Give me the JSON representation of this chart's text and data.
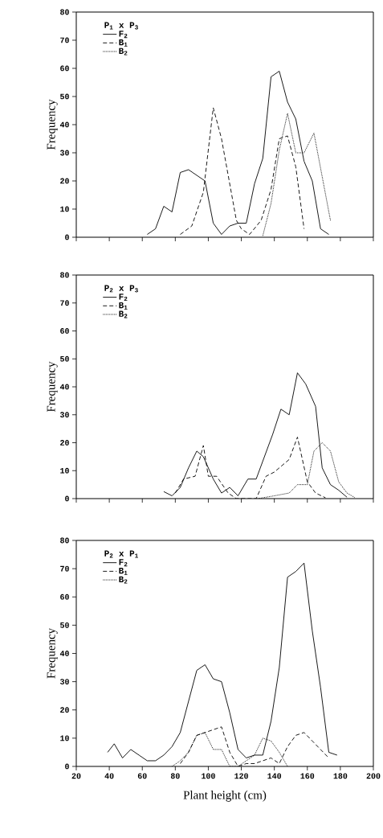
{
  "chart_data": [
    {
      "type": "line",
      "legend_title": "P$_{1}$ x P$_{3}$",
      "ylabel": "Frequency",
      "xlim": [
        20,
        200
      ],
      "xticks": [
        20,
        40,
        60,
        80,
        100,
        120,
        140,
        160,
        180,
        200
      ],
      "ylim": [
        0,
        80
      ],
      "yticks": [
        0,
        10,
        20,
        30,
        40,
        50,
        60,
        70,
        80
      ],
      "tick_labels": "y",
      "legend": "top left",
      "grid": false,
      "marker": "none",
      "series": [
        {
          "name": "F$_{2}$",
          "color": "#000000",
          "line_style": "solid",
          "x": [
            63,
            68,
            73,
            78,
            83,
            88,
            98,
            103,
            108,
            113,
            118,
            123,
            128,
            133,
            138,
            143,
            148,
            153,
            158,
            163,
            168,
            173
          ],
          "values": [
            1,
            3,
            11,
            9,
            23,
            24,
            20,
            5,
            1,
            4,
            5,
            5,
            19,
            28,
            57,
            59,
            48,
            42,
            27,
            20,
            3,
            1
          ]
        },
        {
          "name": "B$_{1}$",
          "color": "#000000",
          "line_style": "dashed",
          "x": [
            83,
            90,
            97,
            103,
            108,
            117,
            120,
            125,
            132,
            138,
            143,
            148,
            153,
            158
          ],
          "values": [
            1,
            4,
            16,
            46,
            35,
            6,
            3,
            1,
            6,
            17,
            35,
            36,
            25,
            3
          ]
        },
        {
          "name": "B$_{2}$",
          "color": "#000000",
          "line_style": "dotted",
          "x": [
            133,
            138,
            143,
            148,
            153,
            158,
            164,
            174
          ],
          "values": [
            0.5,
            12,
            31,
            44,
            30,
            30,
            37,
            6
          ]
        }
      ]
    },
    {
      "type": "line",
      "legend_title": "P$_{2}$ x P$_{3}$",
      "ylabel": "Frequency",
      "xlim": [
        20,
        200
      ],
      "xticks": [
        20,
        40,
        60,
        80,
        100,
        120,
        140,
        160,
        180,
        200
      ],
      "ylim": [
        0,
        80
      ],
      "yticks": [
        0,
        10,
        20,
        30,
        40,
        50,
        60,
        70,
        80
      ],
      "tick_labels": "y",
      "legend": "top left",
      "grid": false,
      "marker": "none",
      "series": [
        {
          "name": "F$_{2}$",
          "color": "#000000",
          "line_style": "solid",
          "x": [
            73,
            78,
            83,
            88,
            93,
            97,
            103,
            108,
            113,
            118,
            124,
            129,
            134,
            139,
            144,
            149,
            154,
            159,
            165,
            169,
            174,
            179,
            184
          ],
          "values": [
            2.5,
            1,
            4,
            11,
            17,
            15,
            7,
            2,
            4,
            1,
            7,
            7,
            15,
            23,
            32,
            30,
            45,
            41,
            33,
            11,
            5,
            3,
            0.5
          ]
        },
        {
          "name": "B$_{1}$",
          "color": "#000000",
          "line_style": "dashed",
          "x": [
            80,
            85,
            92,
            97,
            100,
            105,
            112,
            117,
            129,
            135,
            140,
            149,
            154,
            160,
            165,
            171
          ],
          "values": [
            2,
            7,
            8,
            19,
            8,
            8,
            2,
            0,
            0,
            8,
            9.5,
            14,
            22,
            6,
            2,
            0.3
          ]
        },
        {
          "name": "B$_{2}$",
          "color": "#000000",
          "line_style": "dotted",
          "x": [
            130,
            140,
            149,
            154,
            160,
            164,
            169,
            174,
            179,
            184,
            189
          ],
          "values": [
            0,
            1,
            2,
            5,
            5,
            17,
            20,
            17,
            6,
            2,
            0.3
          ]
        }
      ]
    },
    {
      "type": "line",
      "legend_title": "P$_{2}$ x P$_{1}$",
      "ylabel": "Frequency",
      "xlabel": "Plant height (cm)",
      "xlim": [
        20,
        200
      ],
      "xticks": [
        20,
        40,
        60,
        80,
        100,
        120,
        140,
        160,
        180,
        200
      ],
      "ylim": [
        0,
        80
      ],
      "yticks": [
        0,
        10,
        20,
        30,
        40,
        50,
        60,
        70,
        80
      ],
      "legend": "top left",
      "grid": false,
      "marker": "none",
      "series": [
        {
          "name": "F$_{2}$",
          "color": "#000000",
          "line_style": "solid",
          "x": [
            39,
            43,
            48,
            53,
            58,
            63,
            68,
            73,
            78,
            83,
            88,
            93,
            98,
            103,
            108,
            113,
            118,
            123,
            128,
            133,
            138,
            143,
            148,
            153,
            158,
            163,
            168,
            173,
            178
          ],
          "values": [
            5,
            8,
            3,
            6,
            4,
            2,
            2,
            4,
            7,
            12,
            23,
            34,
            36,
            31,
            30,
            19,
            6,
            3,
            4,
            4,
            16,
            35,
            67,
            69,
            72,
            48,
            28,
            5,
            4
          ]
        },
        {
          "name": "B$_{1}$",
          "color": "#000000",
          "line_style": "dashed",
          "x": [
            83,
            88,
            93,
            98,
            103,
            108,
            113,
            118,
            123,
            128,
            133,
            138,
            143,
            148,
            153,
            158,
            163,
            168,
            173
          ],
          "values": [
            1,
            5,
            11,
            12,
            13,
            14,
            5,
            0,
            1,
            1,
            2,
            3,
            1,
            7,
            11,
            12,
            9,
            6,
            3
          ]
        },
        {
          "name": "B$_{2}$",
          "color": "#000000",
          "line_style": "dotted",
          "x": [
            78,
            83,
            88,
            93,
            98,
            103,
            108,
            113,
            118,
            123,
            128,
            133,
            138,
            143,
            148
          ],
          "values": [
            0,
            2,
            5,
            11,
            12,
            6,
            6,
            0,
            0,
            2,
            4,
            10,
            9,
            5,
            0
          ]
        }
      ]
    }
  ]
}
